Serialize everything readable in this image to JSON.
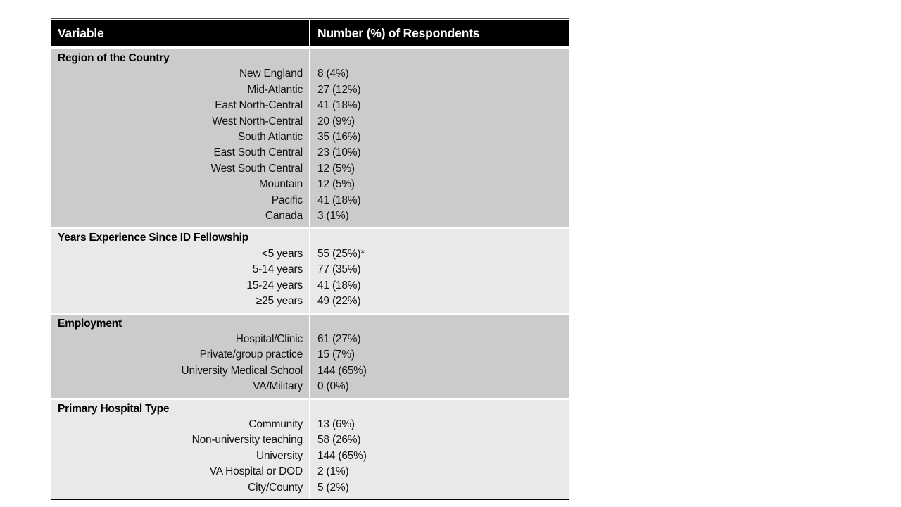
{
  "table": {
    "columns": [
      "Variable",
      "Number (%) of Respondents"
    ],
    "colors": {
      "header_bg": "#000000",
      "header_text": "#ffffff",
      "band_dark": "#cbcbcb",
      "band_light": "#e9e9e9",
      "top_rule": "#4a4a4a",
      "bottom_rule": "#000000"
    },
    "sections": [
      {
        "title": "Region of the Country",
        "rows": [
          {
            "label": "New England",
            "value": "8 (4%)"
          },
          {
            "label": "Mid-Atlantic",
            "value": "27 (12%)"
          },
          {
            "label": "East North-Central",
            "value": "41 (18%)"
          },
          {
            "label": "West North-Central",
            "value": "20 (9%)"
          },
          {
            "label": "South Atlantic",
            "value": "35 (16%)"
          },
          {
            "label": "East South Central",
            "value": "23 (10%)"
          },
          {
            "label": "West South Central",
            "value": "12 (5%)"
          },
          {
            "label": "Mountain",
            "value": "12 (5%)"
          },
          {
            "label": "Pacific",
            "value": "41 (18%)"
          },
          {
            "label": "Canada",
            "value": "3 (1%)"
          }
        ]
      },
      {
        "title": "Years Experience Since ID Fellowship",
        "rows": [
          {
            "label": "<5 years",
            "value": "55 (25%)*"
          },
          {
            "label": "5-14 years",
            "value": "77 (35%)"
          },
          {
            "label": "15-24 years",
            "value": "41 (18%)"
          },
          {
            "label": "≥25 years",
            "value": "49 (22%)"
          }
        ]
      },
      {
        "title": "Employment",
        "rows": [
          {
            "label": "Hospital/Clinic",
            "value": "61 (27%)"
          },
          {
            "label": "Private/group practice",
            "value": "15 (7%)"
          },
          {
            "label": "University Medical School",
            "value": "144 (65%)"
          },
          {
            "label": "VA/Military",
            "value": "0 (0%)"
          }
        ]
      },
      {
        "title": "Primary Hospital Type",
        "rows": [
          {
            "label": "Community",
            "value": "13 (6%)"
          },
          {
            "label": "Non-university teaching",
            "value": "58 (26%)"
          },
          {
            "label": "University",
            "value": "144 (65%)"
          },
          {
            "label": "VA Hospital or DOD",
            "value": "2 (1%)"
          },
          {
            "label": "City/County",
            "value": "5 (2%)"
          }
        ]
      }
    ]
  }
}
